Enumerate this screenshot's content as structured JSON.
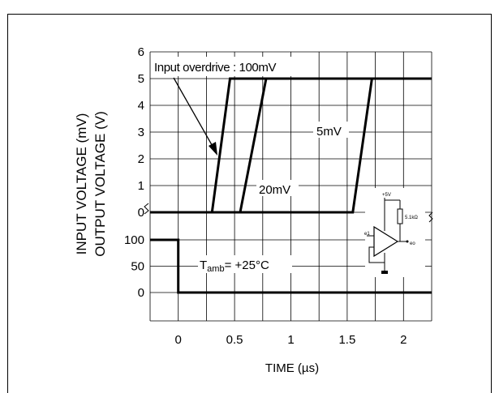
{
  "chart_data": {
    "type": "line",
    "xlabel_prefix": "TIME (",
    "xlabel_unit": "µs",
    "xlabel_suffix": ")",
    "ylabel_outer": "INPUT VOLTAGE (mV)",
    "ylabel_inner": "OUTPUT VOLTAGE (V)",
    "x_ticks": [
      "0",
      "0.5",
      "1",
      "1.5",
      "2"
    ],
    "x_tick_values": [
      0,
      0.5,
      1,
      1.5,
      2
    ],
    "xlim": [
      -0.25,
      2.25
    ],
    "output_axis": {
      "ticks": [
        "0",
        "1",
        "2",
        "3",
        "4",
        "5",
        "6"
      ],
      "tick_values": [
        0,
        1,
        2,
        3,
        4,
        5,
        6
      ],
      "ylim": [
        0,
        6
      ]
    },
    "input_axis": {
      "ticks": [
        "0",
        "50",
        "100"
      ],
      "tick_values": [
        0,
        50,
        100
      ],
      "ylim": [
        0,
        100
      ]
    },
    "grid": true,
    "series": [
      {
        "name": "100mV",
        "axis": "output",
        "x": [
          -0.25,
          0.3,
          0.46,
          2.25
        ],
        "y": [
          0,
          0,
          5,
          5
        ]
      },
      {
        "name": "20mV",
        "axis": "output",
        "x": [
          -0.25,
          0.55,
          0.78,
          2.25
        ],
        "y": [
          0,
          0,
          5,
          5
        ]
      },
      {
        "name": "5mV",
        "axis": "output",
        "x": [
          -0.25,
          1.55,
          1.72,
          2.25
        ],
        "y": [
          0,
          0,
          5,
          5
        ]
      },
      {
        "name": "Input",
        "axis": "input",
        "x": [
          -0.25,
          0,
          0,
          2.25
        ],
        "y": [
          100,
          100,
          0,
          0
        ]
      }
    ],
    "annotations": {
      "overdrive": "Input overdrive : 100mV",
      "label_5mv": "5mV",
      "label_20mv": "20mV",
      "tamb_prefix": "T",
      "tamb_sub": "amb",
      "tamb_suffix": "= +25°C"
    },
    "inset_circuit": {
      "supply": "+5V",
      "resistor": "5.1kΩ",
      "input": "e1",
      "output": "eo"
    }
  }
}
